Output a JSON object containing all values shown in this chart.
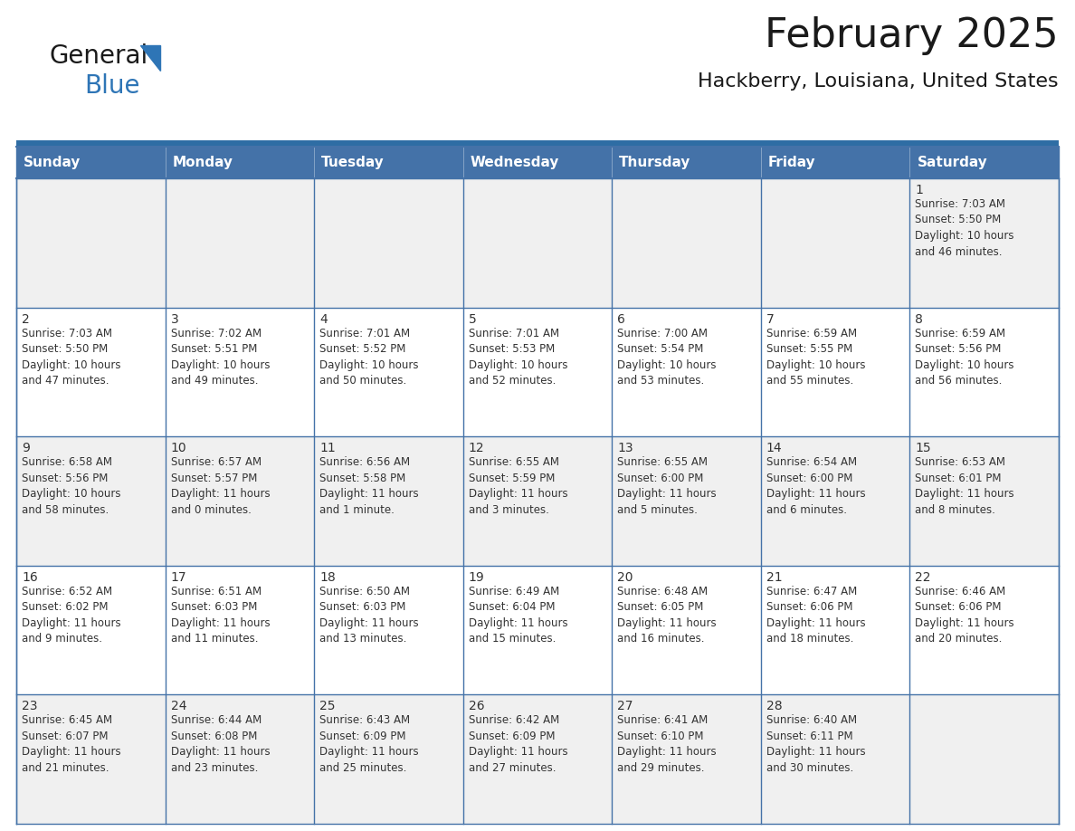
{
  "title": "February 2025",
  "subtitle": "Hackberry, Louisiana, United States",
  "header_bg_color": "#4472a8",
  "header_text_color": "#ffffff",
  "cell_bg_color_odd": "#f0f0f0",
  "cell_bg_color_even": "#ffffff",
  "border_color": "#4472a8",
  "day_number_color": "#333333",
  "cell_text_color": "#333333",
  "days_of_week": [
    "Sunday",
    "Monday",
    "Tuesday",
    "Wednesday",
    "Thursday",
    "Friday",
    "Saturday"
  ],
  "weeks": [
    [
      {
        "day": "",
        "info": ""
      },
      {
        "day": "",
        "info": ""
      },
      {
        "day": "",
        "info": ""
      },
      {
        "day": "",
        "info": ""
      },
      {
        "day": "",
        "info": ""
      },
      {
        "day": "",
        "info": ""
      },
      {
        "day": "1",
        "info": "Sunrise: 7:03 AM\nSunset: 5:50 PM\nDaylight: 10 hours\nand 46 minutes."
      }
    ],
    [
      {
        "day": "2",
        "info": "Sunrise: 7:03 AM\nSunset: 5:50 PM\nDaylight: 10 hours\nand 47 minutes."
      },
      {
        "day": "3",
        "info": "Sunrise: 7:02 AM\nSunset: 5:51 PM\nDaylight: 10 hours\nand 49 minutes."
      },
      {
        "day": "4",
        "info": "Sunrise: 7:01 AM\nSunset: 5:52 PM\nDaylight: 10 hours\nand 50 minutes."
      },
      {
        "day": "5",
        "info": "Sunrise: 7:01 AM\nSunset: 5:53 PM\nDaylight: 10 hours\nand 52 minutes."
      },
      {
        "day": "6",
        "info": "Sunrise: 7:00 AM\nSunset: 5:54 PM\nDaylight: 10 hours\nand 53 minutes."
      },
      {
        "day": "7",
        "info": "Sunrise: 6:59 AM\nSunset: 5:55 PM\nDaylight: 10 hours\nand 55 minutes."
      },
      {
        "day": "8",
        "info": "Sunrise: 6:59 AM\nSunset: 5:56 PM\nDaylight: 10 hours\nand 56 minutes."
      }
    ],
    [
      {
        "day": "9",
        "info": "Sunrise: 6:58 AM\nSunset: 5:56 PM\nDaylight: 10 hours\nand 58 minutes."
      },
      {
        "day": "10",
        "info": "Sunrise: 6:57 AM\nSunset: 5:57 PM\nDaylight: 11 hours\nand 0 minutes."
      },
      {
        "day": "11",
        "info": "Sunrise: 6:56 AM\nSunset: 5:58 PM\nDaylight: 11 hours\nand 1 minute."
      },
      {
        "day": "12",
        "info": "Sunrise: 6:55 AM\nSunset: 5:59 PM\nDaylight: 11 hours\nand 3 minutes."
      },
      {
        "day": "13",
        "info": "Sunrise: 6:55 AM\nSunset: 6:00 PM\nDaylight: 11 hours\nand 5 minutes."
      },
      {
        "day": "14",
        "info": "Sunrise: 6:54 AM\nSunset: 6:00 PM\nDaylight: 11 hours\nand 6 minutes."
      },
      {
        "day": "15",
        "info": "Sunrise: 6:53 AM\nSunset: 6:01 PM\nDaylight: 11 hours\nand 8 minutes."
      }
    ],
    [
      {
        "day": "16",
        "info": "Sunrise: 6:52 AM\nSunset: 6:02 PM\nDaylight: 11 hours\nand 9 minutes."
      },
      {
        "day": "17",
        "info": "Sunrise: 6:51 AM\nSunset: 6:03 PM\nDaylight: 11 hours\nand 11 minutes."
      },
      {
        "day": "18",
        "info": "Sunrise: 6:50 AM\nSunset: 6:03 PM\nDaylight: 11 hours\nand 13 minutes."
      },
      {
        "day": "19",
        "info": "Sunrise: 6:49 AM\nSunset: 6:04 PM\nDaylight: 11 hours\nand 15 minutes."
      },
      {
        "day": "20",
        "info": "Sunrise: 6:48 AM\nSunset: 6:05 PM\nDaylight: 11 hours\nand 16 minutes."
      },
      {
        "day": "21",
        "info": "Sunrise: 6:47 AM\nSunset: 6:06 PM\nDaylight: 11 hours\nand 18 minutes."
      },
      {
        "day": "22",
        "info": "Sunrise: 6:46 AM\nSunset: 6:06 PM\nDaylight: 11 hours\nand 20 minutes."
      }
    ],
    [
      {
        "day": "23",
        "info": "Sunrise: 6:45 AM\nSunset: 6:07 PM\nDaylight: 11 hours\nand 21 minutes."
      },
      {
        "day": "24",
        "info": "Sunrise: 6:44 AM\nSunset: 6:08 PM\nDaylight: 11 hours\nand 23 minutes."
      },
      {
        "day": "25",
        "info": "Sunrise: 6:43 AM\nSunset: 6:09 PM\nDaylight: 11 hours\nand 25 minutes."
      },
      {
        "day": "26",
        "info": "Sunrise: 6:42 AM\nSunset: 6:09 PM\nDaylight: 11 hours\nand 27 minutes."
      },
      {
        "day": "27",
        "info": "Sunrise: 6:41 AM\nSunset: 6:10 PM\nDaylight: 11 hours\nand 29 minutes."
      },
      {
        "day": "28",
        "info": "Sunrise: 6:40 AM\nSunset: 6:11 PM\nDaylight: 11 hours\nand 30 minutes."
      },
      {
        "day": "",
        "info": ""
      }
    ]
  ],
  "logo_text_general": "General",
  "logo_text_blue": "Blue",
  "title_fontsize": 32,
  "subtitle_fontsize": 16,
  "header_fontsize": 11,
  "day_number_fontsize": 10,
  "cell_text_fontsize": 8.5
}
